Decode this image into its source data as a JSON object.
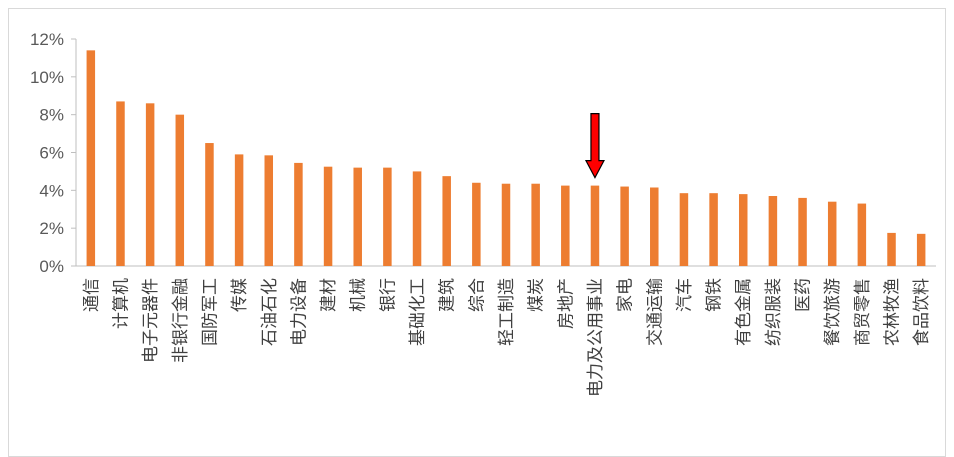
{
  "chart_data": {
    "type": "bar",
    "title": "",
    "xlabel": "",
    "ylabel": "",
    "ylim": [
      0,
      12
    ],
    "yticks": [
      "0%",
      "2%",
      "4%",
      "6%",
      "8%",
      "10%",
      "12%"
    ],
    "grid": false,
    "legend": "none",
    "bar_color": "#ed7d31",
    "arrow_color": "#ff0000",
    "highlight_category": "电力及公用事业",
    "categories": [
      "通信",
      "计算机",
      "电子元器件",
      "非银行金融",
      "国防军工",
      "传媒",
      "石油石化",
      "电力设备",
      "建材",
      "机械",
      "银行",
      "基础化工",
      "建筑",
      "综合",
      "轻工制造",
      "煤炭",
      "房地产",
      "电力及公用事业",
      "家电",
      "交通运输",
      "汽车",
      "钢铁",
      "有色金属",
      "纺织服装",
      "医药",
      "餐饮旅游",
      "商贸零售",
      "农林牧渔",
      "食品饮料"
    ],
    "values": [
      11.4,
      8.7,
      8.6,
      8.0,
      6.5,
      5.9,
      5.85,
      5.45,
      5.25,
      5.2,
      5.2,
      5.0,
      4.75,
      4.4,
      4.35,
      4.35,
      4.25,
      4.25,
      4.2,
      4.15,
      3.85,
      3.85,
      3.8,
      3.7,
      3.6,
      3.4,
      3.3,
      1.75,
      1.7
    ]
  }
}
